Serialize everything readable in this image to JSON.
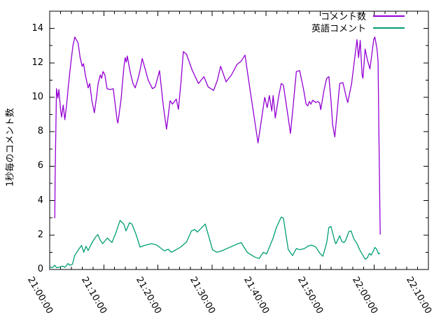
{
  "chart_data": {
    "type": "line",
    "title": "",
    "background_color": "#ffffff",
    "axis_color": "#000000",
    "x_axis": {
      "label": "",
      "tick_labels": [
        "21:00:00",
        "21:10:00",
        "21:20:00",
        "21:30:00",
        "21:40:00",
        "21:50:00",
        "22:00:00",
        "22:10:00"
      ],
      "tick_minutes": [
        0,
        10,
        20,
        30,
        40,
        50,
        60,
        70
      ],
      "minor_tick_interval_minutes": 2,
      "range_minutes": [
        0,
        70
      ],
      "tick_label_rotation_deg": 60
    },
    "y_axis": {
      "label": "1秒毎のコメント数",
      "tick_values": [
        0,
        2,
        4,
        6,
        8,
        10,
        12,
        14
      ],
      "minor_tick_interval": 1,
      "range": [
        0,
        15
      ]
    },
    "legend": {
      "position": "top-right",
      "entries": [
        "コメント数",
        "英語コメント"
      ]
    },
    "series": [
      {
        "name": "コメント数",
        "color": "#9400d3",
        "points_t_min_value": [
          [
            0.95,
            3.0
          ],
          [
            1.0,
            5.1
          ],
          [
            1.1,
            7.4
          ],
          [
            1.25,
            10.5
          ],
          [
            1.5,
            9.95
          ],
          [
            1.7,
            10.45
          ],
          [
            2.0,
            9.3
          ],
          [
            2.2,
            8.85
          ],
          [
            2.5,
            9.55
          ],
          [
            2.8,
            8.7
          ],
          [
            3.1,
            9.5
          ],
          [
            3.5,
            10.8
          ],
          [
            3.9,
            11.95
          ],
          [
            4.3,
            13.0
          ],
          [
            4.65,
            13.5
          ],
          [
            5.0,
            13.3
          ],
          [
            5.25,
            13.15
          ],
          [
            5.6,
            12.35
          ],
          [
            6.0,
            11.8
          ],
          [
            6.25,
            11.95
          ],
          [
            6.65,
            11.2
          ],
          [
            7.1,
            10.55
          ],
          [
            7.4,
            10.8
          ],
          [
            7.8,
            9.8
          ],
          [
            8.25,
            9.1
          ],
          [
            8.7,
            10.1
          ],
          [
            8.95,
            10.8
          ],
          [
            9.35,
            11.3
          ],
          [
            9.6,
            11.1
          ],
          [
            9.85,
            11.5
          ],
          [
            10.2,
            11.3
          ],
          [
            10.6,
            10.5
          ],
          [
            11.2,
            10.45
          ],
          [
            11.75,
            10.5
          ],
          [
            12.1,
            9.6
          ],
          [
            12.45,
            8.7
          ],
          [
            12.6,
            8.5
          ],
          [
            13.2,
            9.9
          ],
          [
            13.45,
            10.8
          ],
          [
            13.7,
            11.7
          ],
          [
            13.95,
            12.3
          ],
          [
            14.15,
            12.05
          ],
          [
            14.35,
            12.4
          ],
          [
            14.65,
            11.85
          ],
          [
            15.0,
            11.3
          ],
          [
            15.4,
            10.8
          ],
          [
            15.8,
            10.55
          ],
          [
            16.3,
            11.05
          ],
          [
            16.65,
            11.5
          ],
          [
            17.1,
            12.25
          ],
          [
            17.5,
            11.8
          ],
          [
            18.2,
            11.0
          ],
          [
            19.0,
            10.5
          ],
          [
            19.5,
            10.6
          ],
          [
            20.3,
            11.55
          ],
          [
            21.0,
            9.5
          ],
          [
            21.6,
            8.15
          ],
          [
            22.25,
            9.8
          ],
          [
            22.7,
            9.6
          ],
          [
            23.4,
            9.9
          ],
          [
            23.8,
            9.3
          ],
          [
            24.3,
            11.0
          ],
          [
            24.7,
            12.65
          ],
          [
            25.3,
            12.5
          ],
          [
            26.3,
            11.6
          ],
          [
            27.5,
            10.8
          ],
          [
            28.5,
            11.2
          ],
          [
            29.3,
            10.6
          ],
          [
            29.8,
            10.5
          ],
          [
            30.3,
            10.4
          ],
          [
            31.0,
            11.0
          ],
          [
            31.6,
            11.8
          ],
          [
            32.6,
            10.9
          ],
          [
            33.6,
            11.3
          ],
          [
            34.6,
            11.9
          ],
          [
            35.4,
            12.1
          ],
          [
            36.1,
            12.45
          ],
          [
            37.0,
            10.5
          ],
          [
            38.5,
            7.35
          ],
          [
            39.75,
            10.0
          ],
          [
            40.2,
            9.4
          ],
          [
            40.6,
            10.1
          ],
          [
            41.05,
            9.2
          ],
          [
            41.3,
            10.1
          ],
          [
            41.7,
            8.8
          ],
          [
            42.3,
            10.0
          ],
          [
            42.8,
            10.8
          ],
          [
            43.2,
            10.7
          ],
          [
            44.0,
            9.0
          ],
          [
            44.5,
            7.9
          ],
          [
            45.0,
            9.5
          ],
          [
            45.6,
            11.5
          ],
          [
            46.2,
            11.55
          ],
          [
            46.9,
            10.5
          ],
          [
            47.4,
            9.6
          ],
          [
            47.7,
            9.5
          ],
          [
            48.0,
            9.76
          ],
          [
            48.3,
            9.6
          ],
          [
            48.6,
            9.83
          ],
          [
            49.2,
            9.7
          ],
          [
            49.6,
            9.76
          ],
          [
            49.9,
            9.66
          ],
          [
            50.1,
            9.28
          ],
          [
            50.7,
            10.4
          ],
          [
            51.2,
            11.1
          ],
          [
            51.6,
            11.2
          ],
          [
            52.0,
            9.8
          ],
          [
            52.3,
            8.4
          ],
          [
            52.7,
            7.7
          ],
          [
            53.2,
            9.4
          ],
          [
            53.6,
            10.8
          ],
          [
            54.2,
            10.85
          ],
          [
            54.9,
            9.9
          ],
          [
            55.1,
            9.7
          ],
          [
            55.8,
            10.8
          ],
          [
            56.2,
            11.8
          ],
          [
            56.8,
            13.35
          ],
          [
            57.1,
            12.3
          ],
          [
            57.4,
            13.3
          ],
          [
            57.75,
            11.3
          ],
          [
            57.9,
            11.1
          ],
          [
            58.3,
            12.8
          ],
          [
            58.7,
            12.2
          ],
          [
            59.2,
            11.65
          ],
          [
            59.9,
            13.35
          ],
          [
            60.1,
            13.5
          ],
          [
            60.5,
            12.8
          ],
          [
            60.7,
            12.1
          ],
          [
            60.85,
            7.9
          ],
          [
            60.95,
            5.4
          ],
          [
            61.05,
            3.1
          ],
          [
            61.1,
            2.05
          ]
        ]
      },
      {
        "name": "英語コメント",
        "color": "#009e73",
        "points_t_min_value": [
          [
            0.1,
            0.15
          ],
          [
            0.5,
            0.1
          ],
          [
            0.9,
            0.25
          ],
          [
            1.3,
            0.1
          ],
          [
            1.9,
            0.15
          ],
          [
            2.4,
            0.2
          ],
          [
            2.8,
            0.12
          ],
          [
            3.4,
            0.35
          ],
          [
            3.7,
            0.25
          ],
          [
            4.2,
            0.3
          ],
          [
            4.6,
            0.8
          ],
          [
            5.3,
            1.15
          ],
          [
            5.9,
            1.4
          ],
          [
            6.3,
            1.0
          ],
          [
            6.7,
            1.35
          ],
          [
            7.1,
            1.1
          ],
          [
            7.8,
            1.55
          ],
          [
            8.5,
            1.9
          ],
          [
            8.9,
            2.03
          ],
          [
            9.35,
            1.7
          ],
          [
            9.8,
            1.5
          ],
          [
            10.65,
            1.83
          ],
          [
            11.5,
            1.56
          ],
          [
            12.2,
            2.1
          ],
          [
            13.0,
            2.85
          ],
          [
            13.7,
            2.64
          ],
          [
            14.1,
            2.24
          ],
          [
            14.75,
            2.71
          ],
          [
            15.2,
            2.64
          ],
          [
            16.0,
            2.0
          ],
          [
            16.7,
            1.3
          ],
          [
            17.5,
            1.4
          ],
          [
            18.85,
            1.5
          ],
          [
            19.8,
            1.42
          ],
          [
            21.2,
            1.08
          ],
          [
            21.9,
            1.18
          ],
          [
            22.5,
            1.0
          ],
          [
            23.3,
            1.14
          ],
          [
            24.2,
            1.3
          ],
          [
            25.3,
            1.6
          ],
          [
            26.2,
            2.24
          ],
          [
            26.8,
            2.32
          ],
          [
            27.3,
            2.17
          ],
          [
            28.75,
            2.64
          ],
          [
            30.1,
            1.15
          ],
          [
            30.9,
            1.0
          ],
          [
            31.8,
            1.08
          ],
          [
            33.7,
            1.35
          ],
          [
            34.8,
            1.5
          ],
          [
            35.4,
            1.56
          ],
          [
            36.5,
            1.0
          ],
          [
            37.8,
            0.74
          ],
          [
            38.7,
            0.64
          ],
          [
            39.5,
            1.0
          ],
          [
            40.1,
            0.9
          ],
          [
            41.3,
            1.83
          ],
          [
            41.9,
            2.44
          ],
          [
            42.8,
            3.05
          ],
          [
            43.2,
            2.97
          ],
          [
            44.1,
            1.15
          ],
          [
            44.9,
            0.81
          ],
          [
            45.6,
            1.22
          ],
          [
            46.2,
            1.15
          ],
          [
            47.1,
            1.22
          ],
          [
            47.7,
            1.35
          ],
          [
            48.4,
            1.42
          ],
          [
            49.2,
            1.31
          ],
          [
            49.9,
            0.95
          ],
          [
            50.5,
            0.77
          ],
          [
            51.2,
            1.56
          ],
          [
            51.6,
            2.44
          ],
          [
            52.0,
            2.5
          ],
          [
            52.7,
            1.63
          ],
          [
            52.9,
            1.49
          ],
          [
            53.6,
            1.96
          ],
          [
            54.0,
            1.63
          ],
          [
            54.4,
            1.56
          ],
          [
            54.7,
            1.69
          ],
          [
            55.3,
            2.2
          ],
          [
            55.7,
            2.24
          ],
          [
            56.2,
            1.8
          ],
          [
            56.8,
            1.5
          ],
          [
            57.3,
            1.15
          ],
          [
            57.8,
            0.87
          ],
          [
            58.3,
            0.6
          ],
          [
            58.7,
            0.67
          ],
          [
            59.1,
            0.94
          ],
          [
            59.4,
            0.83
          ],
          [
            59.8,
            1.06
          ],
          [
            60.1,
            1.28
          ],
          [
            60.4,
            1.2
          ],
          [
            60.8,
            0.9
          ],
          [
            61.0,
            0.95
          ]
        ]
      }
    ]
  }
}
